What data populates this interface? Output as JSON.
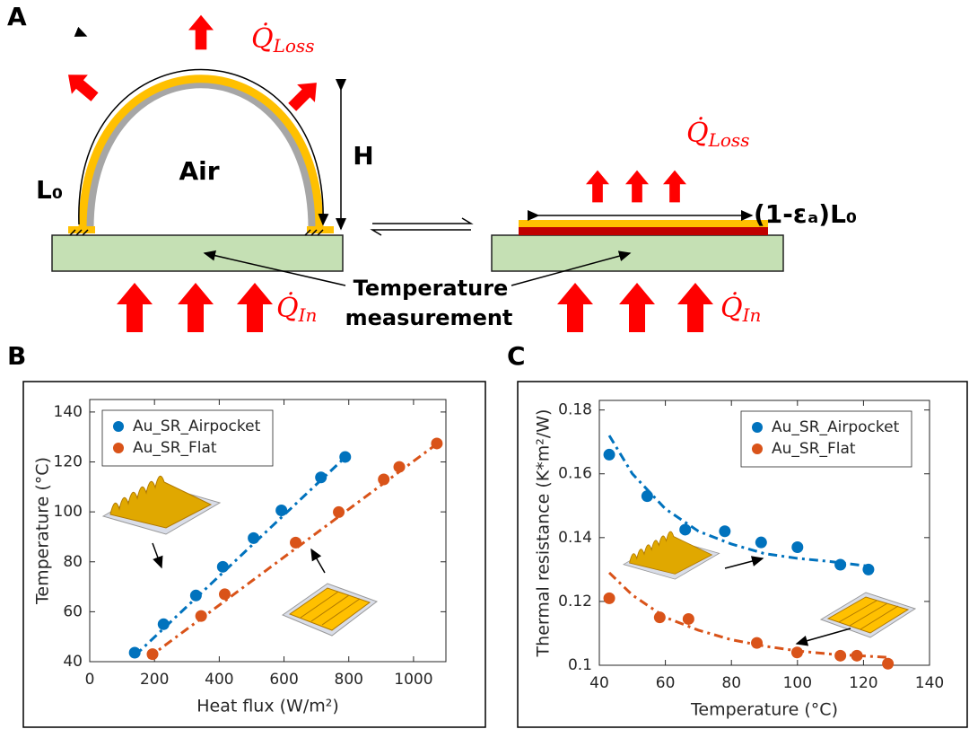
{
  "panel_labels": [
    "A",
    "B",
    "C"
  ],
  "diagram": {
    "air": "Air",
    "height": "H",
    "length": "L₀",
    "compressed_length": "(1-εₐ)L₀",
    "temperature_measurement": [
      "Temperature",
      "measurement"
    ],
    "heat_loss": {
      "symbol": "Q̇",
      "subscript": "Loss"
    },
    "heat_in": {
      "symbol": "Q̇",
      "subscript": "In"
    }
  },
  "chart_data": [
    {
      "type": "scatter",
      "xlabel": "Heat flux (W/m²)",
      "ylabel": "Temperature (°C)",
      "xlim": [
        0,
        1100
      ],
      "xticks": [
        0,
        200,
        400,
        600,
        800,
        1000
      ],
      "ylim": [
        40,
        145
      ],
      "yticks": [
        40,
        60,
        80,
        100,
        120,
        140
      ],
      "legend": "upper left",
      "series": [
        {
          "name": "Au_SR_Airpocket",
          "color": "#0072bd",
          "x": [
            139,
            228,
            328,
            411,
            506,
            592,
            714,
            789
          ],
          "values": [
            43.6,
            55,
            66.5,
            78,
            89.5,
            100.6,
            113.8,
            122
          ],
          "fit_x": [
            140,
            790
          ],
          "fit_values": [
            42.5,
            122
          ]
        },
        {
          "name": "Au_SR_Flat",
          "color": "#d95319",
          "x": [
            194,
            344,
            417,
            636,
            769,
            908,
            956,
            1072
          ],
          "values": [
            43,
            58.3,
            67,
            87.7,
            99.9,
            113,
            118,
            127.4
          ],
          "fit_x": [
            180,
            1075
          ],
          "fit_values": [
            41.5,
            127.5
          ]
        }
      ]
    },
    {
      "type": "scatter",
      "xlabel": "Temperature (°C)",
      "ylabel": "Thermal resistance (K*m²/W)",
      "xlim": [
        40,
        140
      ],
      "xticks": [
        40,
        60,
        80,
        100,
        120,
        140
      ],
      "ylim": [
        0.1,
        0.183
      ],
      "yticks": [
        0.1,
        0.12,
        0.14,
        0.16,
        0.18
      ],
      "legend": "upper right",
      "series": [
        {
          "name": "Au_SR_Airpocket",
          "color": "#0072bd",
          "x": [
            43,
            54.5,
            66,
            78,
            89,
            100,
            113,
            121.5
          ],
          "values": [
            0.166,
            0.153,
            0.1425,
            0.142,
            0.1385,
            0.137,
            0.1315,
            0.13
          ],
          "fit_x": [
            43,
            50,
            60,
            70,
            80,
            90,
            100,
            110,
            122
          ],
          "fit_values": [
            0.172,
            0.16,
            0.149,
            0.142,
            0.138,
            0.135,
            0.1335,
            0.1325,
            0.131
          ]
        },
        {
          "name": "Au_SR_Flat",
          "color": "#d95319",
          "x": [
            43,
            58.3,
            67,
            87.7,
            99.9,
            113,
            118,
            127.4
          ],
          "values": [
            0.121,
            0.115,
            0.1145,
            0.107,
            0.104,
            0.103,
            0.103,
            0.1005
          ],
          "fit_x": [
            43,
            50,
            60,
            70,
            80,
            90,
            100,
            110,
            127
          ],
          "fit_values": [
            0.129,
            0.122,
            0.115,
            0.111,
            0.108,
            0.106,
            0.1045,
            0.1035,
            0.1025
          ]
        }
      ]
    }
  ]
}
